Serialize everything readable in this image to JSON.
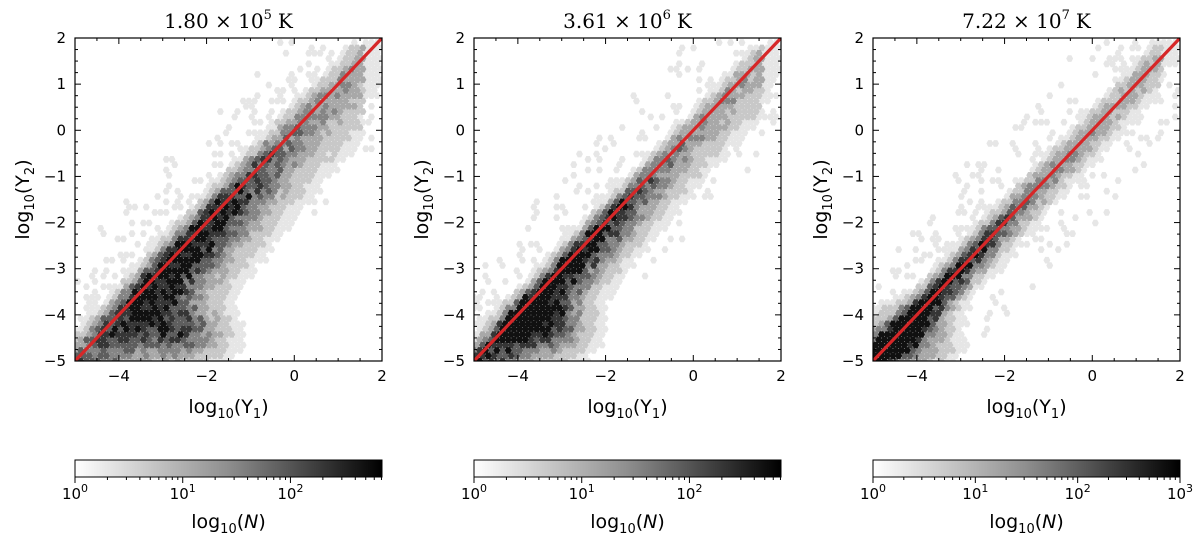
{
  "chart_data": [
    {
      "type": "heatmap",
      "subtype": "hexbin",
      "title": {
        "mantissa": "1.80",
        "times": "×",
        "base": "10",
        "exponent": "5",
        "unit": "K"
      },
      "xlabel": {
        "func": "log",
        "func_sub": "10",
        "open": "(Y",
        "sub": "1",
        "close": ")"
      },
      "ylabel": {
        "func": "log",
        "func_sub": "10",
        "open": "(Y",
        "sub": "2",
        "close": ")"
      },
      "xlim": [
        -5,
        2
      ],
      "ylim": [
        -5,
        2
      ],
      "xticks": [
        -4,
        -2,
        0,
        2
      ],
      "yticks": [
        -5,
        -4,
        -3,
        -2,
        -1,
        0,
        1,
        2
      ],
      "reference_line": {
        "from": [
          -5,
          -5
        ],
        "to": [
          2,
          2
        ],
        "color": "#d62728"
      },
      "density": {
        "spread_above": 0.45,
        "spread_below": 1.35,
        "tail_center": [
          -2.5,
          -4.4
        ],
        "peak_x": -2.6,
        "scatter_span": 0.6
      },
      "colorbar": {
        "label": {
          "func": "log",
          "func_sub": "10",
          "open": "(",
          "var": "N",
          "close": ")"
        },
        "log_max": 2.85,
        "ticks": [
          {
            "base": "10",
            "exponent": "0",
            "value": 0
          },
          {
            "base": "10",
            "exponent": "1",
            "value": 1
          },
          {
            "base": "10",
            "exponent": "2",
            "value": 2
          }
        ]
      }
    },
    {
      "type": "heatmap",
      "subtype": "hexbin",
      "title": {
        "mantissa": "3.61",
        "times": "×",
        "base": "10",
        "exponent": "6",
        "unit": "K"
      },
      "xlabel": {
        "func": "log",
        "func_sub": "10",
        "open": "(Y",
        "sub": "1",
        "close": ")"
      },
      "ylabel": {
        "func": "log",
        "func_sub": "10",
        "open": "(Y",
        "sub": "2",
        "close": ")"
      },
      "xlim": [
        -5,
        2
      ],
      "ylim": [
        -5,
        2
      ],
      "xticks": [
        -4,
        -2,
        0,
        2
      ],
      "yticks": [
        -5,
        -4,
        -3,
        -2,
        -1,
        0,
        1,
        2
      ],
      "reference_line": {
        "from": [
          -5,
          -5
        ],
        "to": [
          2,
          2
        ],
        "color": "#d62728"
      },
      "density": {
        "spread_above": 0.35,
        "spread_below": 1.0,
        "tail_center": [
          -3.3,
          -4.3
        ],
        "peak_x": -3.2,
        "scatter_span": 0.8
      },
      "colorbar": {
        "label": {
          "func": "log",
          "func_sub": "10",
          "open": "(",
          "var": "N",
          "close": ")"
        },
        "log_max": 2.85,
        "ticks": [
          {
            "base": "10",
            "exponent": "0",
            "value": 0
          },
          {
            "base": "10",
            "exponent": "1",
            "value": 1
          },
          {
            "base": "10",
            "exponent": "2",
            "value": 2
          }
        ]
      }
    },
    {
      "type": "heatmap",
      "subtype": "hexbin",
      "title": {
        "mantissa": "7.22",
        "times": "×",
        "base": "10",
        "exponent": "7",
        "unit": "K"
      },
      "xlabel": {
        "func": "log",
        "func_sub": "10",
        "open": "(Y",
        "sub": "1",
        "close": ")"
      },
      "ylabel": {
        "func": "log",
        "func_sub": "10",
        "open": "(Y",
        "sub": "2",
        "close": ")"
      },
      "xlim": [
        -5,
        2
      ],
      "ylim": [
        -5,
        2
      ],
      "xticks": [
        -4,
        -2,
        0,
        2
      ],
      "yticks": [
        -5,
        -4,
        -3,
        -2,
        -1,
        0,
        1,
        2
      ],
      "reference_line": {
        "from": [
          -5,
          -5
        ],
        "to": [
          2,
          2
        ],
        "color": "#d62728"
      },
      "density": {
        "spread_above": 0.4,
        "spread_below": 0.55,
        "tail_center": [
          -4.2,
          -4.5
        ],
        "peak_x": -4.0,
        "scatter_span": 1.3
      },
      "colorbar": {
        "label": {
          "func": "log",
          "func_sub": "10",
          "open": "(",
          "var": "N",
          "close": ")"
        },
        "log_max": 3.0,
        "ticks": [
          {
            "base": "10",
            "exponent": "0",
            "value": 0
          },
          {
            "base": "10",
            "exponent": "1",
            "value": 1
          },
          {
            "base": "10",
            "exponent": "2",
            "value": 2
          },
          {
            "base": "10",
            "exponent": "3",
            "value": 3
          }
        ]
      }
    }
  ]
}
